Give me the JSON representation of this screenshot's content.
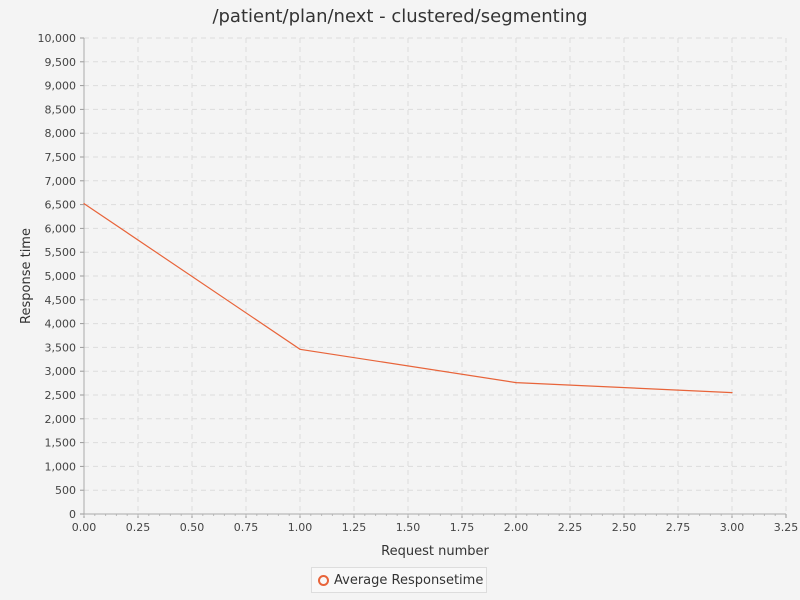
{
  "chart_data": {
    "type": "line",
    "title": "/patient/plan/next - clustered/segmenting",
    "xlabel": "Request number",
    "ylabel": "Response time",
    "xlim": [
      0,
      3.25
    ],
    "ylim": [
      0,
      10000
    ],
    "x_ticks": [
      "0.00",
      "0.25",
      "0.50",
      "0.75",
      "1.00",
      "1.25",
      "1.50",
      "1.75",
      "2.00",
      "2.25",
      "2.50",
      "2.75",
      "3.00",
      "3.25"
    ],
    "y_ticks": [
      "0",
      "500",
      "1,000",
      "1,500",
      "2,000",
      "2,500",
      "3,000",
      "3,500",
      "4,000",
      "4,500",
      "5,000",
      "5,500",
      "6,000",
      "6,500",
      "7,000",
      "7,500",
      "8,000",
      "8,500",
      "9,000",
      "9,500",
      "10,000"
    ],
    "grid": true,
    "legend_position": "bottom",
    "series": [
      {
        "name": "Average Responsetime",
        "color": "#e8643a",
        "x": [
          0,
          1,
          2,
          3
        ],
        "y": [
          6520,
          3460,
          2760,
          2550
        ]
      }
    ]
  }
}
